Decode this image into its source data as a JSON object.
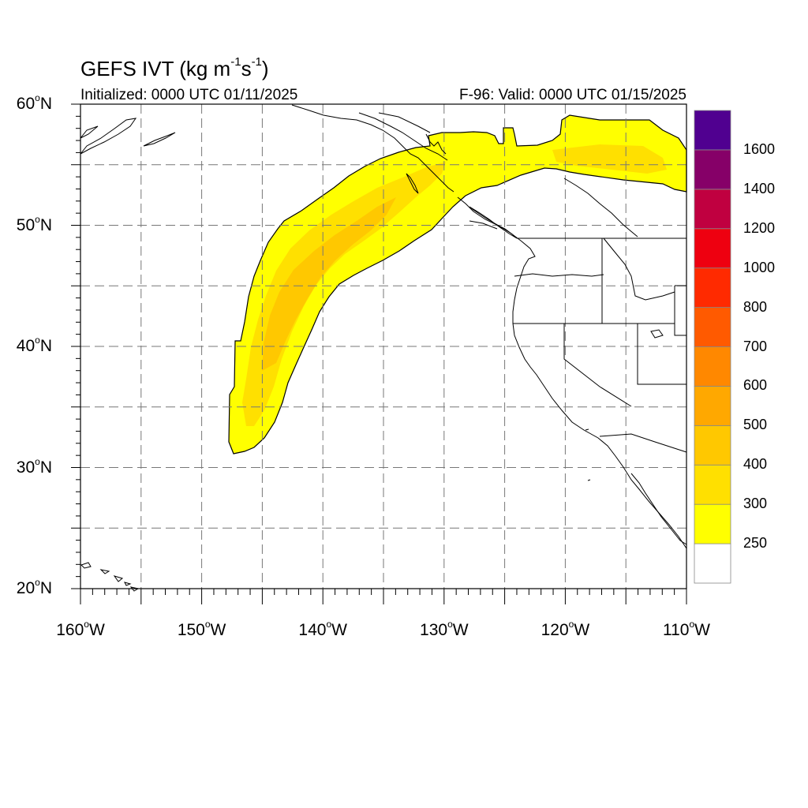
{
  "title": {
    "prefix": "GEFS IVT (kg m",
    "exp1": "-1",
    "mid": "s",
    "exp2": "-1",
    "suffix": ")"
  },
  "subtitle_left": "Initialized: 0000 UTC 01/11/2025",
  "subtitle_right": "F-96: Valid: 0000 UTC 01/15/2025",
  "map": {
    "projection": "cylindrical-equidistant",
    "lon_range": [
      -160,
      -110
    ],
    "lat_range": [
      20,
      60
    ],
    "grid": "dashed",
    "grid_lon_step": 5,
    "grid_lat_step": 5,
    "boundaries": [
      "coastlines",
      "US state borders",
      "Canada-US border",
      "Mexico-US border"
    ],
    "shaded_field": "integrated water vapor transport plume from ~32N 147W northeast to ~58N 110W"
  },
  "lat_ticks": [
    {
      "value": 60,
      "deg": "60",
      "hemi": "N"
    },
    {
      "value": 50,
      "deg": "50",
      "hemi": "N"
    },
    {
      "value": 40,
      "deg": "40",
      "hemi": "N"
    },
    {
      "value": 30,
      "deg": "30",
      "hemi": "N"
    },
    {
      "value": 20,
      "deg": "20",
      "hemi": "N"
    }
  ],
  "lon_ticks": [
    {
      "value": -160,
      "deg": "160",
      "hemi": "W"
    },
    {
      "value": -150,
      "deg": "150",
      "hemi": "W"
    },
    {
      "value": -140,
      "deg": "140",
      "hemi": "W"
    },
    {
      "value": -130,
      "deg": "130",
      "hemi": "W"
    },
    {
      "value": -120,
      "deg": "120",
      "hemi": "W"
    },
    {
      "value": -110,
      "deg": "110",
      "hemi": "W"
    }
  ],
  "colorbar": {
    "levels": [
      "250",
      "300",
      "400",
      "500",
      "600",
      "700",
      "800",
      "1000",
      "1200",
      "1400",
      "1600"
    ],
    "colors": [
      "#ffffff",
      "#ffff00",
      "#ffe000",
      "#ffc800",
      "#ffa800",
      "#ff8800",
      "#ff5a00",
      "#ff2a00",
      "#ee0010",
      "#c00040",
      "#860068",
      "#500090"
    ]
  },
  "ivt_colors": {
    "outer": "#ffff00",
    "mid": "#ffe000",
    "core": "#ffc800"
  }
}
